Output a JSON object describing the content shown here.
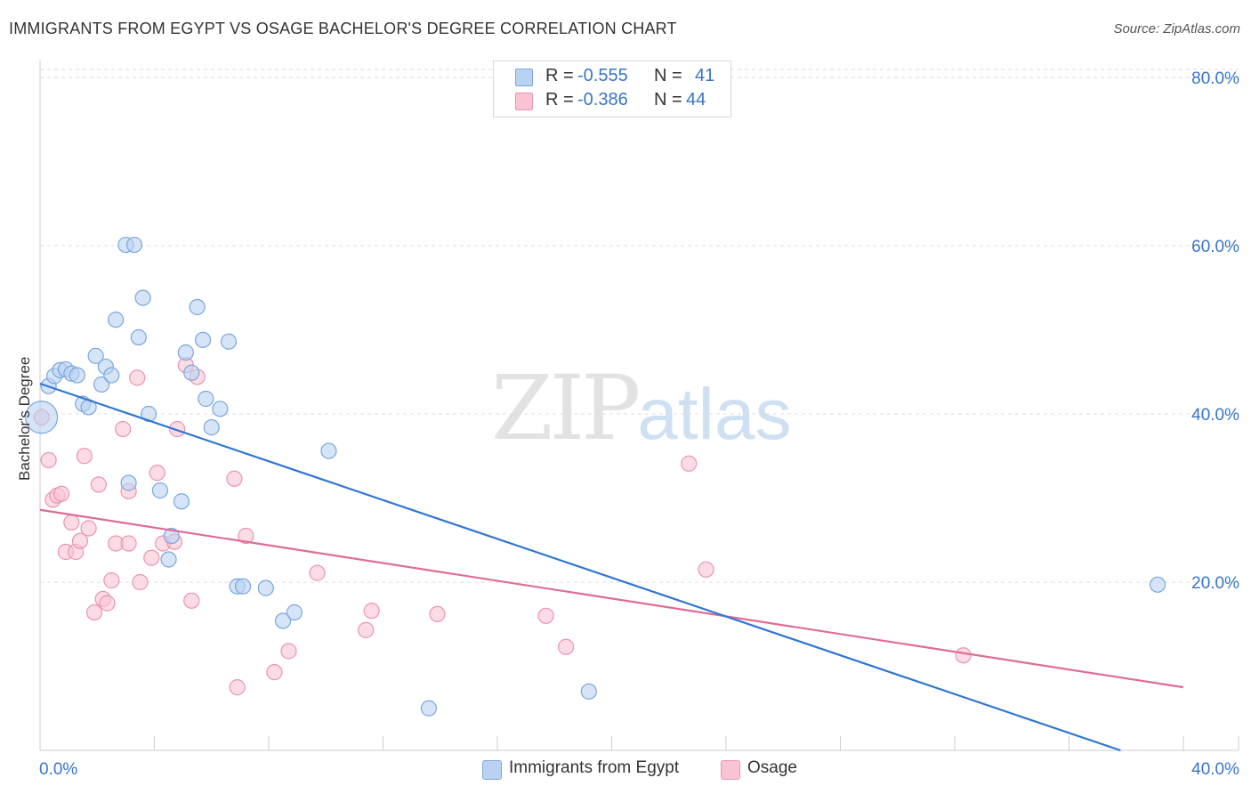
{
  "header": {
    "title": "IMMIGRANTS FROM EGYPT VS OSAGE BACHELOR'S DEGREE CORRELATION CHART",
    "source": "Source: ZipAtlas.com"
  },
  "watermark": {
    "zip": "ZIP",
    "atlas": "atlas"
  },
  "legend": {
    "rows": [
      {
        "r_label": "R =",
        "r_value": "-0.555",
        "n_label": "N =",
        "n_value": "41"
      },
      {
        "r_label": "R =",
        "r_value": "-0.386",
        "n_label": "N =",
        "n_value": "44"
      }
    ]
  },
  "bottom_legend": {
    "series1": "Immigrants from Egypt",
    "series2": "Osage"
  },
  "colors": {
    "blue_fill": "#b9d2f1",
    "blue_stroke": "#7aa7dd",
    "blue_line": "#3076d4",
    "pink_fill": "#f8c4d4",
    "pink_stroke": "#ec93b1",
    "pink_line": "#e06b97",
    "axis_text": "#3a75c4",
    "grid": "#dddddd"
  },
  "chart_data": {
    "type": "scatter",
    "title": "IMMIGRANTS FROM EGYPT VS OSAGE BACHELOR'S DEGREE CORRELATION CHART",
    "xlabel": "",
    "ylabel": "Bachelor's Degree",
    "xlim": [
      0,
      40
    ],
    "ylim": [
      0,
      82
    ],
    "x_tick_labels": [
      {
        "value": 0,
        "label": "0.0%"
      },
      {
        "value": 40,
        "label": "40.0%"
      }
    ],
    "y_tick_labels": [
      {
        "value": 20,
        "label": "20.0%"
      },
      {
        "value": 40,
        "label": "40.0%"
      },
      {
        "value": 60,
        "label": "60.0%"
      },
      {
        "value": 80,
        "label": "80.0%"
      }
    ],
    "x_minor_ticks": [
      4,
      8,
      12,
      16,
      20,
      24,
      28,
      32,
      36,
      40
    ],
    "grid": true,
    "series": [
      {
        "name": "Immigrants from Egypt",
        "color": "blue",
        "trend": {
          "x": [
            0,
            37.8
          ],
          "y": [
            43.6,
            0
          ]
        },
        "points": [
          {
            "x": 0.05,
            "y": 39.6,
            "big": true
          },
          {
            "x": 0.3,
            "y": 43.3
          },
          {
            "x": 0.5,
            "y": 44.5
          },
          {
            "x": 0.7,
            "y": 45.2
          },
          {
            "x": 0.9,
            "y": 45.3
          },
          {
            "x": 1.1,
            "y": 44.8
          },
          {
            "x": 1.3,
            "y": 44.6
          },
          {
            "x": 1.5,
            "y": 41.2
          },
          {
            "x": 1.7,
            "y": 40.8
          },
          {
            "x": 1.95,
            "y": 46.9
          },
          {
            "x": 2.15,
            "y": 43.5
          },
          {
            "x": 2.3,
            "y": 45.6
          },
          {
            "x": 2.5,
            "y": 44.6
          },
          {
            "x": 2.65,
            "y": 51.2
          },
          {
            "x": 3.0,
            "y": 60.1
          },
          {
            "x": 3.3,
            "y": 60.1
          },
          {
            "x": 3.45,
            "y": 49.1
          },
          {
            "x": 3.6,
            "y": 53.8
          },
          {
            "x": 3.8,
            "y": 40.0
          },
          {
            "x": 3.1,
            "y": 31.8
          },
          {
            "x": 4.2,
            "y": 30.9
          },
          {
            "x": 4.5,
            "y": 22.7
          },
          {
            "x": 4.6,
            "y": 25.5
          },
          {
            "x": 4.95,
            "y": 29.6
          },
          {
            "x": 5.1,
            "y": 47.3
          },
          {
            "x": 5.3,
            "y": 44.9
          },
          {
            "x": 5.5,
            "y": 52.7
          },
          {
            "x": 5.7,
            "y": 48.8
          },
          {
            "x": 5.8,
            "y": 41.8
          },
          {
            "x": 6.0,
            "y": 38.4
          },
          {
            "x": 6.3,
            "y": 40.6
          },
          {
            "x": 6.6,
            "y": 48.6
          },
          {
            "x": 6.9,
            "y": 19.5
          },
          {
            "x": 7.1,
            "y": 19.5
          },
          {
            "x": 7.9,
            "y": 19.3
          },
          {
            "x": 8.5,
            "y": 15.4
          },
          {
            "x": 8.9,
            "y": 16.4
          },
          {
            "x": 10.1,
            "y": 35.6
          },
          {
            "x": 13.6,
            "y": 5.0
          },
          {
            "x": 19.2,
            "y": 7.0
          },
          {
            "x": 39.1,
            "y": 19.7
          }
        ]
      },
      {
        "name": "Osage",
        "color": "pink",
        "trend": {
          "x": [
            0,
            40
          ],
          "y": [
            28.6,
            7.5
          ]
        },
        "points": [
          {
            "x": 0.05,
            "y": 39.6
          },
          {
            "x": 0.3,
            "y": 34.5
          },
          {
            "x": 0.45,
            "y": 29.8
          },
          {
            "x": 0.6,
            "y": 30.3
          },
          {
            "x": 0.75,
            "y": 30.5
          },
          {
            "x": 0.9,
            "y": 23.6
          },
          {
            "x": 1.1,
            "y": 27.1
          },
          {
            "x": 1.25,
            "y": 23.6
          },
          {
            "x": 1.4,
            "y": 24.9
          },
          {
            "x": 1.55,
            "y": 35.0
          },
          {
            "x": 1.7,
            "y": 26.4
          },
          {
            "x": 1.9,
            "y": 16.4
          },
          {
            "x": 2.05,
            "y": 31.6
          },
          {
            "x": 2.2,
            "y": 18.0
          },
          {
            "x": 2.35,
            "y": 17.5
          },
          {
            "x": 2.5,
            "y": 20.2
          },
          {
            "x": 2.65,
            "y": 24.6
          },
          {
            "x": 2.9,
            "y": 38.2
          },
          {
            "x": 3.1,
            "y": 30.8
          },
          {
            "x": 3.1,
            "y": 24.6
          },
          {
            "x": 3.4,
            "y": 44.3
          },
          {
            "x": 3.5,
            "y": 20.0
          },
          {
            "x": 3.9,
            "y": 22.9
          },
          {
            "x": 4.1,
            "y": 33.0
          },
          {
            "x": 4.3,
            "y": 24.6
          },
          {
            "x": 4.7,
            "y": 24.8
          },
          {
            "x": 4.8,
            "y": 38.2
          },
          {
            "x": 5.1,
            "y": 45.8
          },
          {
            "x": 5.3,
            "y": 17.8
          },
          {
            "x": 5.5,
            "y": 44.4
          },
          {
            "x": 6.8,
            "y": 32.3
          },
          {
            "x": 6.9,
            "y": 7.5
          },
          {
            "x": 7.2,
            "y": 25.5
          },
          {
            "x": 8.2,
            "y": 9.3
          },
          {
            "x": 8.7,
            "y": 11.8
          },
          {
            "x": 9.7,
            "y": 21.1
          },
          {
            "x": 11.4,
            "y": 14.3
          },
          {
            "x": 11.6,
            "y": 16.6
          },
          {
            "x": 13.9,
            "y": 16.2
          },
          {
            "x": 17.7,
            "y": 16.0
          },
          {
            "x": 18.4,
            "y": 12.3
          },
          {
            "x": 22.7,
            "y": 34.1
          },
          {
            "x": 23.3,
            "y": 21.5
          },
          {
            "x": 32.3,
            "y": 11.3
          }
        ]
      }
    ]
  }
}
